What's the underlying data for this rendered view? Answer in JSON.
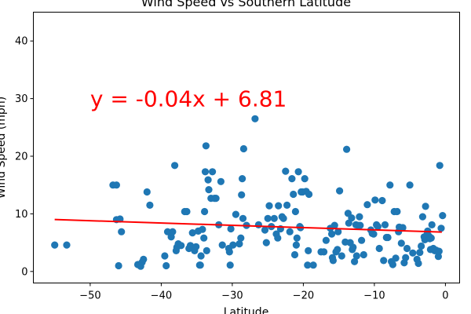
{
  "chart_data": {
    "type": "scatter",
    "title": "Wind Speed vs Southern Latitude",
    "xlabel": "Latitude",
    "ylabel": "Wind Speed (mph)",
    "xlim": [
      -58,
      2
    ],
    "ylim": [
      -2,
      45
    ],
    "x_ticks": [
      -50,
      -40,
      -30,
      -20,
      -10,
      0
    ],
    "y_ticks": [
      0,
      10,
      20,
      30,
      40
    ],
    "grid": false,
    "colors": {
      "points": "#1f77b4",
      "regression": "#ff0000"
    },
    "annotation": "y = -0.04x + 6.81",
    "annotation_pos": [
      -50,
      30
    ],
    "regression": {
      "slope": -0.04,
      "intercept": 6.81,
      "x_range": [
        -55,
        -0.5
      ]
    },
    "points": [
      [
        -55,
        4.6
      ],
      [
        -53.3,
        4.6
      ],
      [
        -46.8,
        15
      ],
      [
        -46.3,
        15
      ],
      [
        -46.3,
        9
      ],
      [
        -45.8,
        9.1
      ],
      [
        -45.6,
        6.9
      ],
      [
        -46,
        1
      ],
      [
        -43.3,
        1.2
      ],
      [
        -42.9,
        0.9
      ],
      [
        -42.7,
        1.6
      ],
      [
        -42.5,
        2.1
      ],
      [
        -42,
        13.8
      ],
      [
        -41.6,
        11.5
      ],
      [
        -39.5,
        2.7
      ],
      [
        -39.3,
        1
      ],
      [
        -39.1,
        6.9
      ],
      [
        -38.6,
        6
      ],
      [
        -38.4,
        6.9
      ],
      [
        -38.1,
        18.4
      ],
      [
        -37.9,
        3.6
      ],
      [
        -37.8,
        4.2
      ],
      [
        -37.6,
        4.8
      ],
      [
        -37.2,
        4.5
      ],
      [
        -36.7,
        10.4
      ],
      [
        -36.4,
        10.4
      ],
      [
        -36.1,
        4
      ],
      [
        -35.9,
        4.5
      ],
      [
        -35.6,
        6.7
      ],
      [
        -35.3,
        3.6
      ],
      [
        -35.1,
        4.3
      ],
      [
        -34.8,
        7
      ],
      [
        -34.6,
        1.1
      ],
      [
        -34.5,
        1.1
      ],
      [
        -34.4,
        2.7
      ],
      [
        -34.2,
        7.3
      ],
      [
        -34,
        5.8
      ],
      [
        -33.9,
        10.4
      ],
      [
        -33.8,
        17.3
      ],
      [
        -33.7,
        21.8
      ],
      [
        -33.6,
        3.6
      ],
      [
        -33.4,
        15.9
      ],
      [
        -33.3,
        14.2
      ],
      [
        -33,
        12.7
      ],
      [
        -32.8,
        17.3
      ],
      [
        -32.5,
        12.7
      ],
      [
        -32.3,
        12.7
      ],
      [
        -31.9,
        8.1
      ],
      [
        -31.6,
        15.6
      ],
      [
        -31.4,
        4.6
      ],
      [
        -30.5,
        4
      ],
      [
        -30.4,
        3.4
      ],
      [
        -30.3,
        1.1
      ],
      [
        -30.2,
        7.4
      ],
      [
        -29.9,
        4.6
      ],
      [
        -29.5,
        9.9
      ],
      [
        -29,
        4.8
      ],
      [
        -28.8,
        5.8
      ],
      [
        -28.7,
        13.3
      ],
      [
        -28.6,
        16.1
      ],
      [
        -28.5,
        9.2
      ],
      [
        -28.4,
        21.3
      ],
      [
        -28,
        8
      ],
      [
        -26.8,
        26.5
      ],
      [
        -26.3,
        8.1
      ],
      [
        -25.4,
        7.2
      ],
      [
        -25.2,
        5
      ],
      [
        -25,
        9.2
      ],
      [
        -24.8,
        11.4
      ],
      [
        -24.5,
        7.8
      ],
      [
        -24.1,
        9.2
      ],
      [
        -23.8,
        6.5
      ],
      [
        -23.6,
        5.8
      ],
      [
        -23.5,
        11.4
      ],
      [
        -23.2,
        7.4
      ],
      [
        -23,
        9.5
      ],
      [
        -22.8,
        9.2
      ],
      [
        -22.5,
        17.4
      ],
      [
        -22.3,
        11.5
      ],
      [
        -21.9,
        6.9
      ],
      [
        -21.6,
        16.1
      ],
      [
        -21.4,
        13.4
      ],
      [
        -21.2,
        2.9
      ],
      [
        -21.1,
        10.4
      ],
      [
        -21,
        4.6
      ],
      [
        -20.9,
        5.8
      ],
      [
        -20.7,
        17.3
      ],
      [
        -20.5,
        7.8
      ],
      [
        -20.4,
        7.6
      ],
      [
        -20.3,
        13.8
      ],
      [
        -20.1,
        13.8
      ],
      [
        -19.8,
        16.1
      ],
      [
        -19.6,
        13.9
      ],
      [
        -19.4,
        1.1
      ],
      [
        -19.3,
        3.6
      ],
      [
        -19.2,
        13.4
      ],
      [
        -18.6,
        1.1
      ],
      [
        -17.5,
        3.4
      ],
      [
        -17.1,
        3.4
      ],
      [
        -16.8,
        5.4
      ],
      [
        -16.2,
        7.5
      ],
      [
        -16,
        6.5
      ],
      [
        -15.9,
        2.4
      ],
      [
        -15.8,
        1.9
      ],
      [
        -15.6,
        8
      ],
      [
        -15.4,
        3.4
      ],
      [
        -15.2,
        3.8
      ],
      [
        -15.1,
        6.9
      ],
      [
        -14.9,
        14
      ],
      [
        -14.6,
        2.7
      ],
      [
        -14.1,
        5.1
      ],
      [
        -13.9,
        21.2
      ],
      [
        -13.7,
        10.1
      ],
      [
        -13.6,
        8.4
      ],
      [
        -13.4,
        5
      ],
      [
        -13.2,
        9.3
      ],
      [
        -13.1,
        3.8
      ],
      [
        -13,
        4.2
      ],
      [
        -12.8,
        1.7
      ],
      [
        -12.6,
        8.1
      ],
      [
        -12.5,
        2.7
      ],
      [
        -12.3,
        8
      ],
      [
        -12.1,
        9.5
      ],
      [
        -12,
        8
      ],
      [
        -11.8,
        5.4
      ],
      [
        -11.5,
        2.9
      ],
      [
        -11,
        11.6
      ],
      [
        -10.5,
        7.2
      ],
      [
        -10.3,
        6.6
      ],
      [
        -10.1,
        6.5
      ],
      [
        -9.9,
        12.4
      ],
      [
        -9.7,
        8.1
      ],
      [
        -9.5,
        7.8
      ],
      [
        -9.3,
        4
      ],
      [
        -8.9,
        12.3
      ],
      [
        -8.7,
        1.9
      ],
      [
        -8.5,
        8.1
      ],
      [
        -8.3,
        5.9
      ],
      [
        -8.1,
        5.9
      ],
      [
        -7.8,
        15
      ],
      [
        -7.6,
        1.7
      ],
      [
        -7.4,
        1.2
      ],
      [
        -7.2,
        10.4
      ],
      [
        -7,
        2.3
      ],
      [
        -6.8,
        10.4
      ],
      [
        -6.6,
        6.9
      ],
      [
        -6.5,
        7.7
      ],
      [
        -6.2,
        4.9
      ],
      [
        -6,
        7.6
      ],
      [
        -5.8,
        1.5
      ],
      [
        -5.6,
        2.4
      ],
      [
        -5.4,
        4
      ],
      [
        -5,
        15
      ],
      [
        -4.6,
        3.2
      ],
      [
        -4,
        2.1
      ],
      [
        -3.8,
        1.4
      ],
      [
        -3.6,
        3.3
      ],
      [
        -3.4,
        4.4
      ],
      [
        -3.2,
        9.5
      ],
      [
        -3,
        6
      ],
      [
        -2.9,
        5.5
      ],
      [
        -2.8,
        11.3
      ],
      [
        -2.7,
        5.8
      ],
      [
        -2.6,
        6.4
      ],
      [
        -2.5,
        7
      ],
      [
        -2.3,
        6.1
      ],
      [
        -2.2,
        5.7
      ],
      [
        -2.1,
        3.8
      ],
      [
        -2,
        5.8
      ],
      [
        -1.9,
        8.1
      ],
      [
        -1.7,
        4
      ],
      [
        -1.5,
        3.6
      ],
      [
        -1.3,
        3.7
      ],
      [
        -1,
        2.6
      ],
      [
        -0.9,
        3.5
      ],
      [
        -0.8,
        18.4
      ],
      [
        -0.6,
        7.5
      ],
      [
        -0.4,
        9.7
      ]
    ]
  }
}
